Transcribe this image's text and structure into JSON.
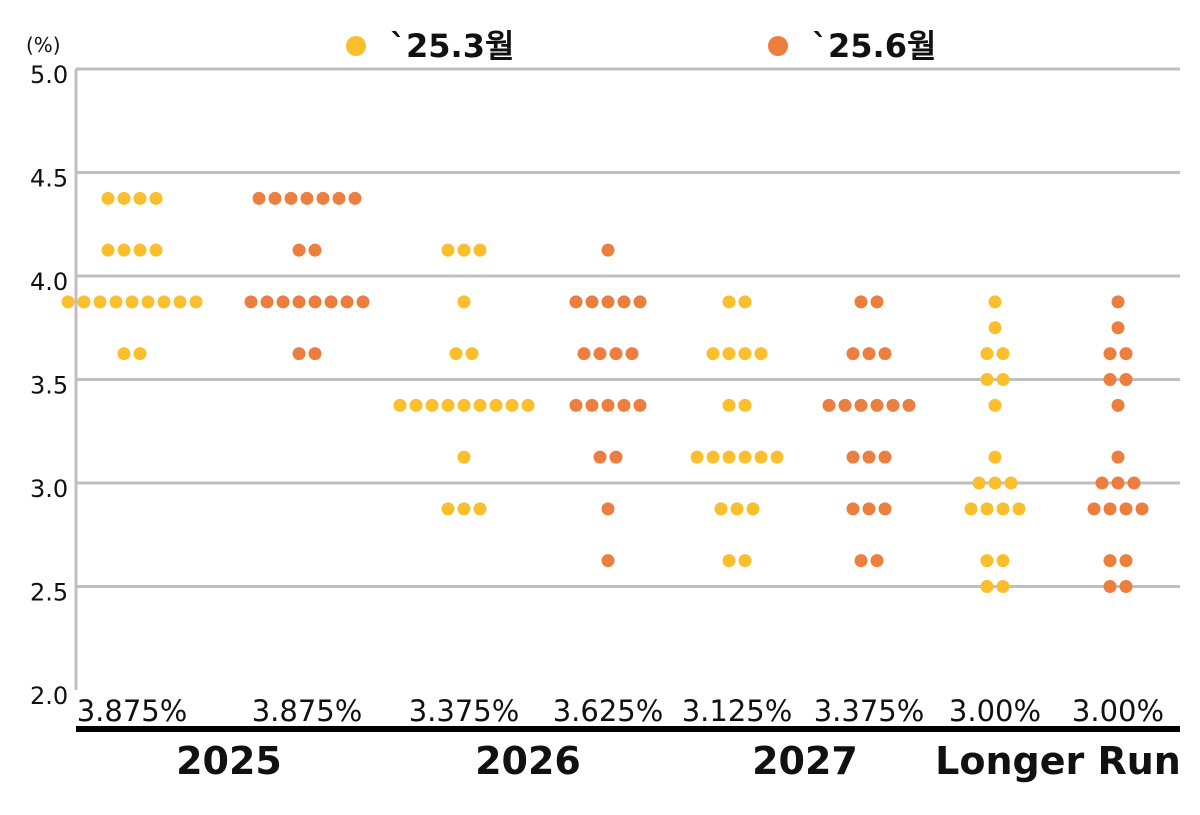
{
  "chart_data": {
    "type": "scatter",
    "subtype": "dot-plot",
    "unit": "(%)",
    "ylim": [
      2.0,
      5.0
    ],
    "yticks": [
      "5.0",
      "4.5",
      "4.0",
      "3.5",
      "3.0",
      "2.5",
      "2.0"
    ],
    "grid": true,
    "legend_position": "top",
    "colors": {
      "march": "#FBBF2E",
      "june": "#EC7F3F",
      "grid": "#BFBFBF",
      "baseline": "#000000"
    },
    "legend": [
      {
        "key": "march",
        "label": "`25.3월"
      },
      {
        "key": "june",
        "label": "`25.6월"
      }
    ],
    "groups": [
      {
        "label": "2025"
      },
      {
        "label": "2026"
      },
      {
        "label": "2027"
      },
      {
        "label": "Longer Run"
      }
    ],
    "columns": [
      {
        "group": 0,
        "series": "march",
        "median": "3.875%",
        "rows": [
          {
            "y": 4.375,
            "n": 4
          },
          {
            "y": 4.125,
            "n": 4
          },
          {
            "y": 3.875,
            "n": 9
          },
          {
            "y": 3.625,
            "n": 2
          }
        ]
      },
      {
        "group": 0,
        "series": "june",
        "median": "3.875%",
        "rows": [
          {
            "y": 4.375,
            "n": 7
          },
          {
            "y": 4.125,
            "n": 2
          },
          {
            "y": 3.875,
            "n": 8
          },
          {
            "y": 3.625,
            "n": 2
          }
        ]
      },
      {
        "group": 1,
        "series": "march",
        "median": "3.375%",
        "rows": [
          {
            "y": 4.125,
            "n": 3
          },
          {
            "y": 3.875,
            "n": 1
          },
          {
            "y": 3.625,
            "n": 2
          },
          {
            "y": 3.375,
            "n": 9
          },
          {
            "y": 3.125,
            "n": 1
          },
          {
            "y": 2.875,
            "n": 3
          }
        ]
      },
      {
        "group": 1,
        "series": "june",
        "median": "3.625%",
        "rows": [
          {
            "y": 4.125,
            "n": 1
          },
          {
            "y": 3.875,
            "n": 5
          },
          {
            "y": 3.625,
            "n": 4
          },
          {
            "y": 3.375,
            "n": 5
          },
          {
            "y": 3.125,
            "n": 2
          },
          {
            "y": 2.875,
            "n": 1
          },
          {
            "y": 2.625,
            "n": 1
          }
        ]
      },
      {
        "group": 2,
        "series": "march",
        "median": "3.125%",
        "rows": [
          {
            "y": 3.875,
            "n": 2
          },
          {
            "y": 3.625,
            "n": 4
          },
          {
            "y": 3.375,
            "n": 2
          },
          {
            "y": 3.125,
            "n": 6
          },
          {
            "y": 2.875,
            "n": 3
          },
          {
            "y": 2.625,
            "n": 2
          }
        ]
      },
      {
        "group": 2,
        "series": "june",
        "median": "3.375%",
        "rows": [
          {
            "y": 3.875,
            "n": 2
          },
          {
            "y": 3.625,
            "n": 3
          },
          {
            "y": 3.375,
            "n": 6
          },
          {
            "y": 3.125,
            "n": 3
          },
          {
            "y": 2.875,
            "n": 3
          },
          {
            "y": 2.625,
            "n": 2
          }
        ]
      },
      {
        "group": 3,
        "series": "march",
        "median": "3.00%",
        "rows": [
          {
            "y": 3.875,
            "n": 1
          },
          {
            "y": 3.75,
            "n": 1
          },
          {
            "y": 3.625,
            "n": 2
          },
          {
            "y": 3.5,
            "n": 2
          },
          {
            "y": 3.375,
            "n": 1
          },
          {
            "y": 3.125,
            "n": 1
          },
          {
            "y": 3.0,
            "n": 3
          },
          {
            "y": 2.875,
            "n": 4
          },
          {
            "y": 2.625,
            "n": 2
          },
          {
            "y": 2.5,
            "n": 2
          }
        ]
      },
      {
        "group": 3,
        "series": "june",
        "median": "3.00%",
        "rows": [
          {
            "y": 3.875,
            "n": 1
          },
          {
            "y": 3.75,
            "n": 1
          },
          {
            "y": 3.625,
            "n": 2
          },
          {
            "y": 3.5,
            "n": 2
          },
          {
            "y": 3.375,
            "n": 1
          },
          {
            "y": 3.125,
            "n": 1
          },
          {
            "y": 3.0,
            "n": 3
          },
          {
            "y": 2.875,
            "n": 4
          },
          {
            "y": 2.625,
            "n": 2
          },
          {
            "y": 2.5,
            "n": 2
          }
        ]
      }
    ]
  }
}
